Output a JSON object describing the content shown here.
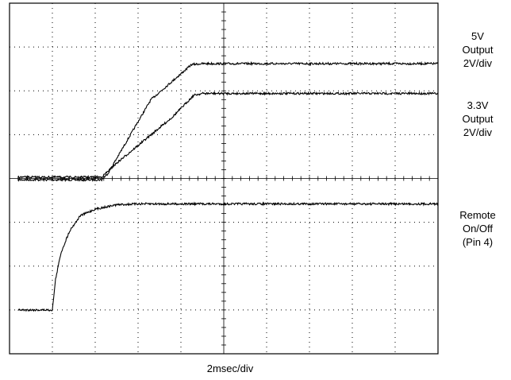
{
  "chart_data": {
    "type": "line",
    "divisions": {
      "x": 10,
      "y": 8
    },
    "xlim": [
      0,
      20
    ],
    "ylim": [
      -8,
      8
    ],
    "x_units": "msec",
    "xlabel": "2msec/div",
    "grid": true,
    "series": [
      {
        "name": "5V Output 2V/div",
        "label_lines": [
          "5V",
          "Output",
          "2V/div"
        ],
        "x": [
          0.4,
          4.3,
          4.6,
          6.6,
          8.5,
          9.0,
          20.0
        ],
        "y_div": [
          -0.03,
          -0.03,
          0.12,
          1.8,
          2.6,
          2.62,
          2.62
        ]
      },
      {
        "name": "3.3V Output 2V/div",
        "label_lines": [
          "3.3V",
          "Output",
          "2V/div"
        ],
        "x": [
          0.4,
          4.3,
          5.0,
          7.6,
          8.6,
          9.0,
          20.0
        ],
        "y_div": [
          0.03,
          0.03,
          0.35,
          1.4,
          1.9,
          1.94,
          1.94
        ]
      },
      {
        "name": "Remote On/Off (Pin 4)",
        "label_lines": [
          "Remote",
          "On/Off",
          "(Pin 4)"
        ],
        "x": [
          0.4,
          2.0,
          2.15,
          2.4,
          2.8,
          3.3,
          4.0,
          5.0,
          6.0,
          20.0
        ],
        "y_div": [
          -3.0,
          -3.0,
          -2.3,
          -1.7,
          -1.2,
          -0.85,
          -0.7,
          -0.6,
          -0.58,
          -0.58
        ]
      }
    ]
  }
}
